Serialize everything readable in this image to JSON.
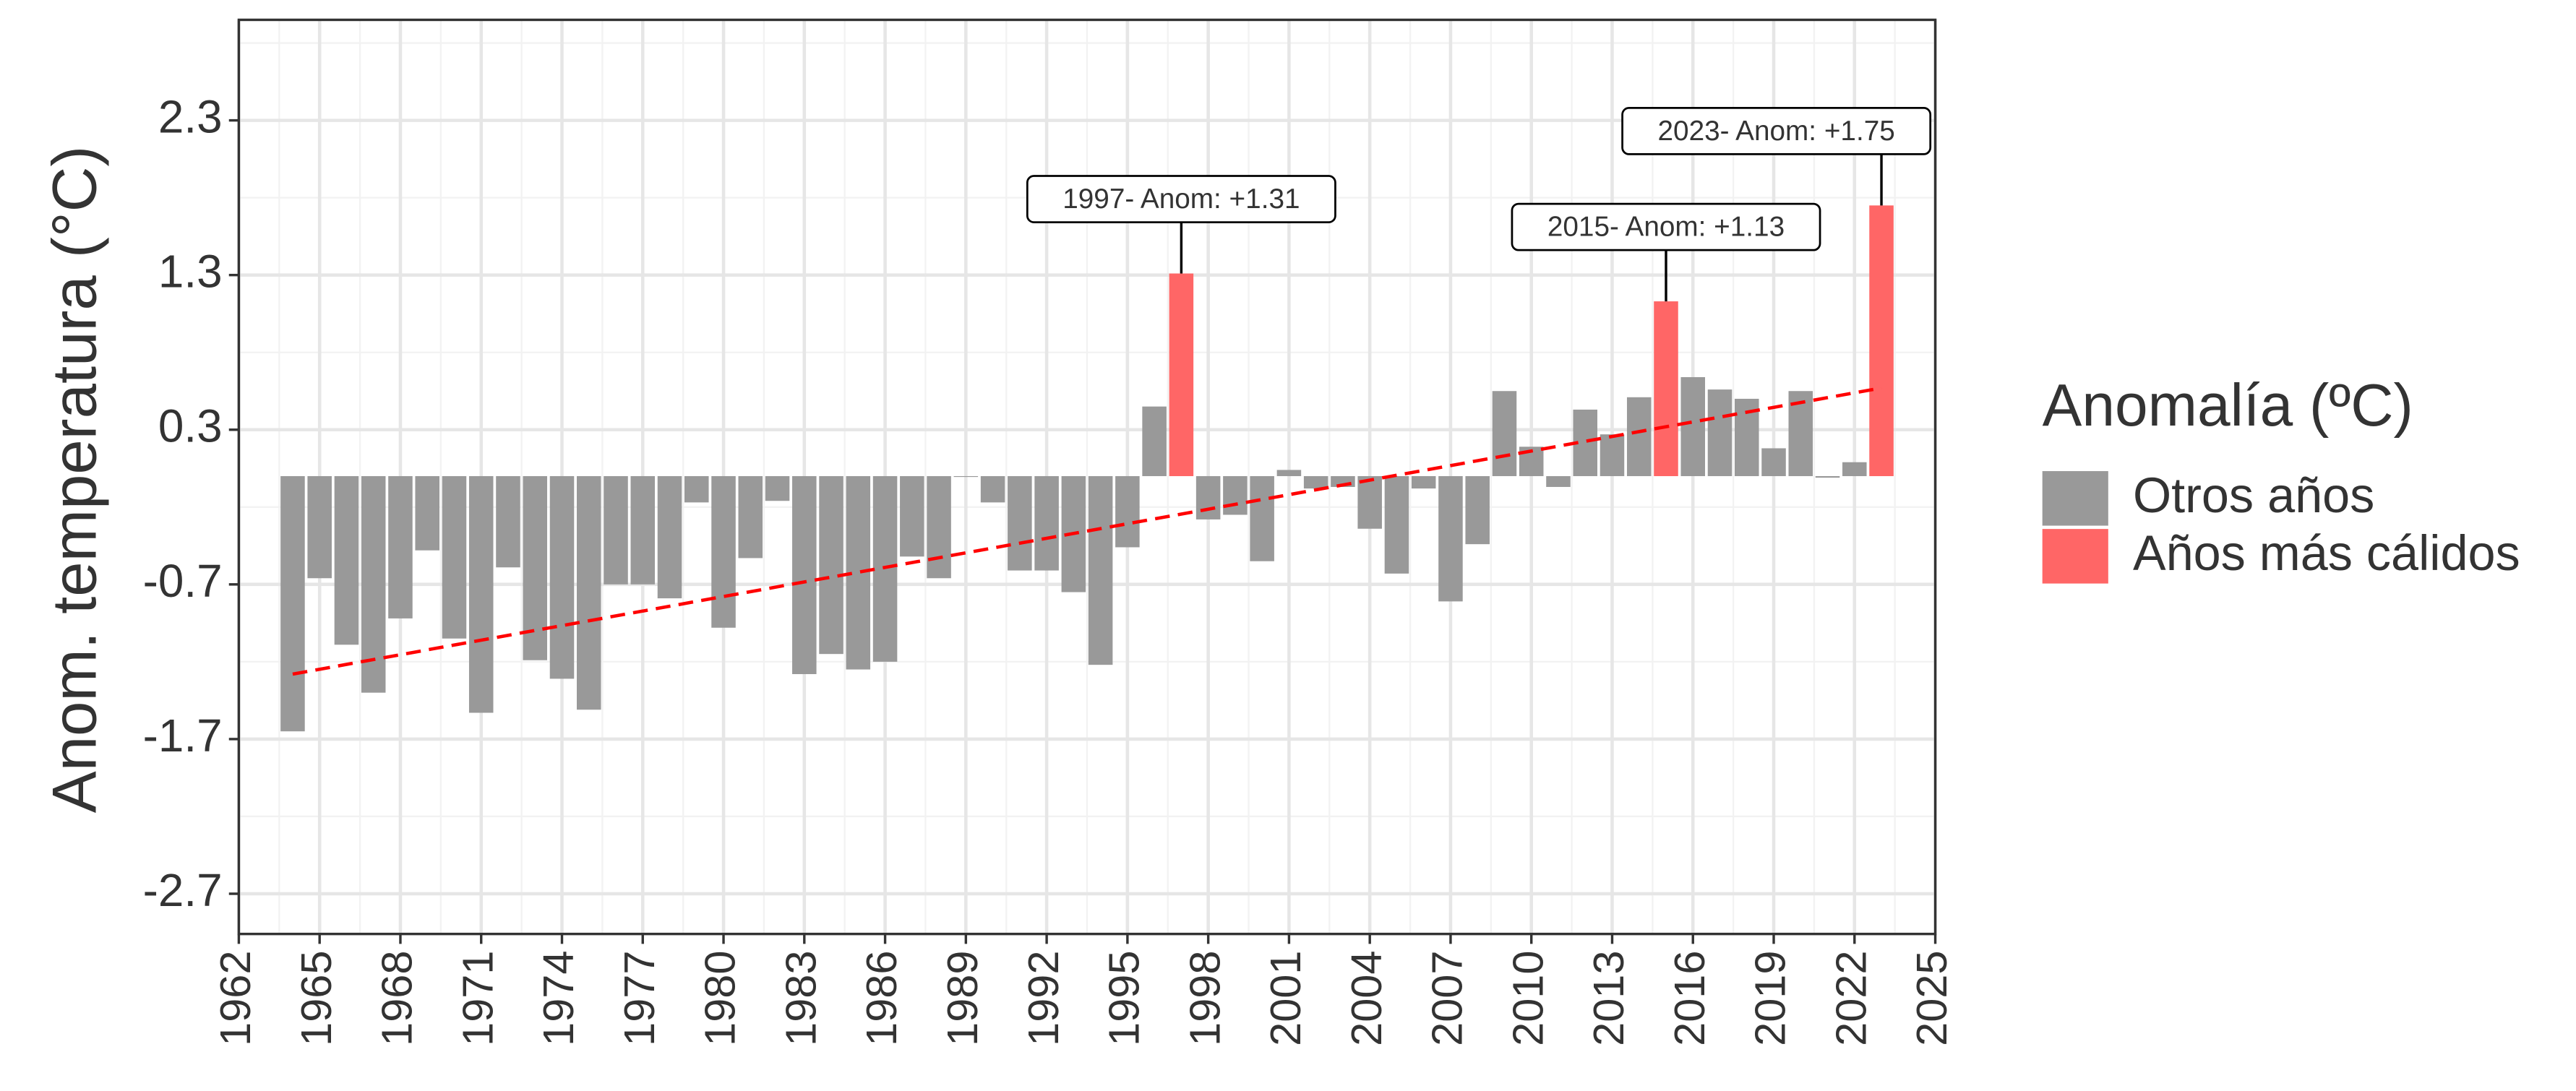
{
  "chart_data": {
    "type": "bar",
    "y_label": "Anom. temperatura (°C)",
    "legend_title": "Anomalía (ºC)",
    "legend_position": "right",
    "grid": true,
    "x": [
      1964,
      1965,
      1966,
      1967,
      1968,
      1969,
      1970,
      1971,
      1972,
      1973,
      1974,
      1975,
      1976,
      1977,
      1978,
      1979,
      1980,
      1981,
      1982,
      1983,
      1984,
      1985,
      1986,
      1987,
      1988,
      1989,
      1990,
      1991,
      1992,
      1993,
      1994,
      1995,
      1996,
      1997,
      1998,
      1999,
      2000,
      2001,
      2002,
      2003,
      2004,
      2005,
      2006,
      2007,
      2008,
      2009,
      2010,
      2011,
      2012,
      2013,
      2014,
      2015,
      2016,
      2017,
      2018,
      2019,
      2020,
      2021,
      2022,
      2023
    ],
    "series": [
      {
        "name": "Otros años",
        "color": "#999999",
        "values": [
          -1.65,
          -0.66,
          -1.09,
          -1.4,
          -0.92,
          -0.48,
          -1.05,
          -1.53,
          -0.59,
          -1.19,
          -1.31,
          -1.51,
          -0.7,
          -0.7,
          -0.79,
          -0.17,
          -0.98,
          -0.53,
          -0.16,
          -1.28,
          -1.15,
          -1.25,
          -1.2,
          -0.52,
          -0.66,
          0.0,
          -0.17,
          -0.61,
          -0.61,
          -0.75,
          -1.22,
          -0.46,
          0.45,
          null,
          -0.28,
          -0.25,
          -0.55,
          0.04,
          -0.08,
          -0.07,
          -0.34,
          -0.63,
          -0.08,
          -0.81,
          -0.44,
          0.55,
          0.19,
          -0.07,
          0.43,
          0.27,
          0.51,
          null,
          0.64,
          0.56,
          0.5,
          0.18,
          0.55,
          -0.01,
          0.09,
          null
        ]
      },
      {
        "name": "Años más cálidos",
        "color": "#ff6666",
        "values": [
          null,
          null,
          null,
          null,
          null,
          null,
          null,
          null,
          null,
          null,
          null,
          null,
          null,
          null,
          null,
          null,
          null,
          null,
          null,
          null,
          null,
          null,
          null,
          null,
          null,
          null,
          null,
          null,
          null,
          null,
          null,
          null,
          null,
          1.31,
          null,
          null,
          null,
          null,
          null,
          null,
          null,
          null,
          null,
          null,
          null,
          null,
          null,
          null,
          null,
          null,
          null,
          1.13,
          null,
          null,
          null,
          null,
          null,
          null,
          null,
          1.75
        ]
      }
    ],
    "trend": {
      "color": "#ff0000",
      "x": [
        1964,
        2023
      ],
      "values": [
        -1.28,
        0.57
      ]
    },
    "annotations": [
      {
        "text": "1997- Anom: +1.31",
        "x": 1997
      },
      {
        "text": "2015- Anom: +1.13",
        "x": 2015
      },
      {
        "text": "2023- Anom: +1.75",
        "x": 2023
      }
    ],
    "xlim": [
      1962,
      2025
    ],
    "xticks": [
      1962,
      1965,
      1968,
      1971,
      1974,
      1977,
      1980,
      1983,
      1986,
      1989,
      1992,
      1995,
      1998,
      2001,
      2004,
      2007,
      2010,
      2013,
      2016,
      2019,
      2022,
      2025
    ],
    "ylim": [
      -2.96,
      2.95
    ],
    "yticks": [
      -2.7,
      -1.7,
      -0.7,
      0.3,
      1.3,
      2.3
    ]
  }
}
